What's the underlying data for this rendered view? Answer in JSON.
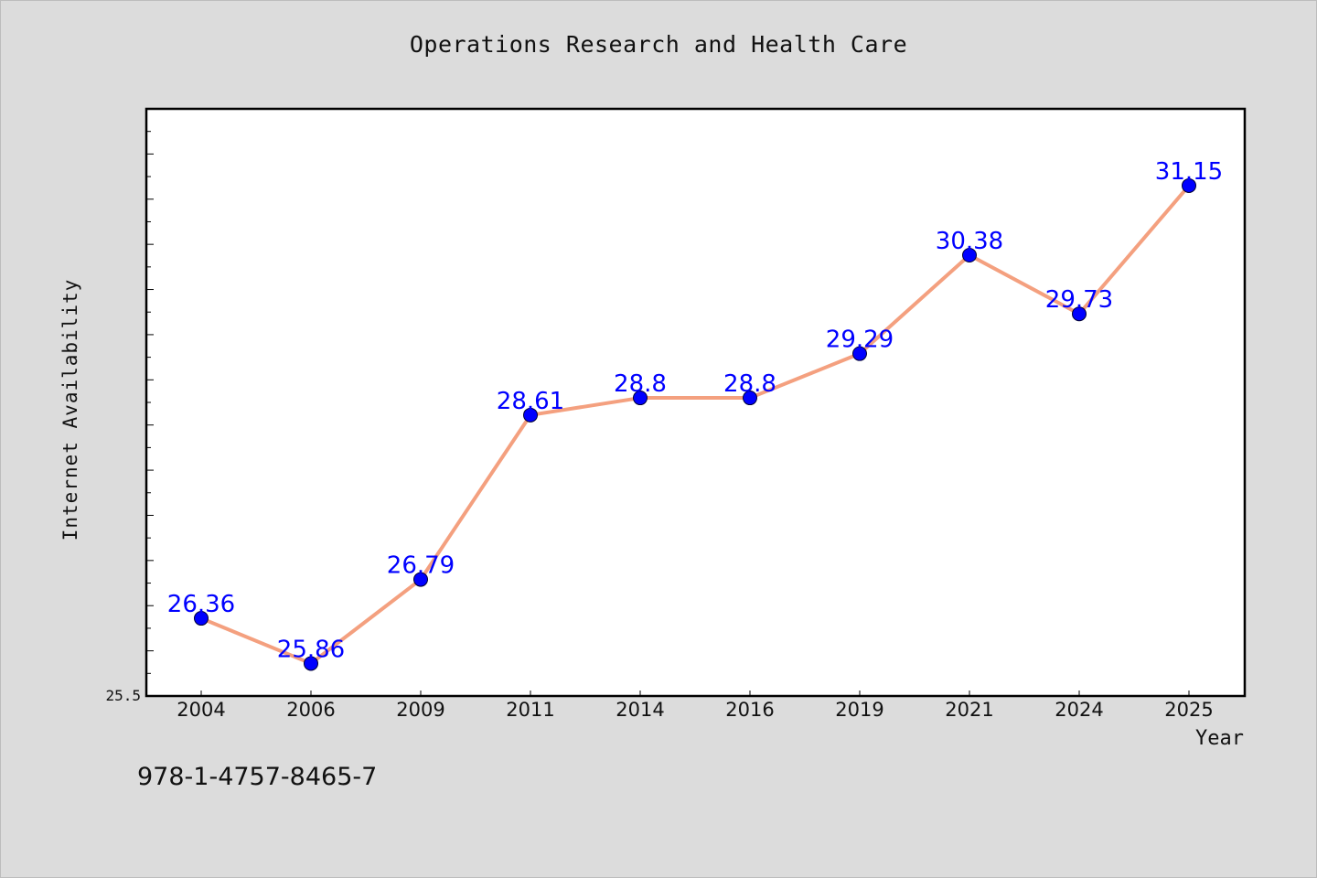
{
  "chart_data": {
    "type": "line",
    "title": "Operations Research and Health Care",
    "xlabel": "Year",
    "ylabel": "Internet Availability",
    "categories": [
      "2004",
      "2006",
      "2009",
      "2011",
      "2014",
      "2016",
      "2019",
      "2021",
      "2024",
      "2025"
    ],
    "series": [
      {
        "values": [
          26.36,
          25.86,
          26.79,
          28.61,
          28.8,
          28.8,
          29.29,
          30.38,
          29.73,
          31.15
        ]
      }
    ],
    "data_labels": [
      "26.36",
      "25.86",
      "26.79",
      "28.61",
      "28.8",
      "28.8",
      "29.29",
      "30.38",
      "29.73",
      "31.15"
    ],
    "ylim": [
      25.5,
      32.0
    ],
    "y_tick_label": "25.5",
    "grid": false,
    "colors": {
      "line": "#f4a07f",
      "marker": "#0000ff",
      "label": "#0000ff",
      "background": "#dcdcdc",
      "plot_area": "#ffffff"
    }
  },
  "footer": {
    "identifier": "978-1-4757-8465-7"
  }
}
